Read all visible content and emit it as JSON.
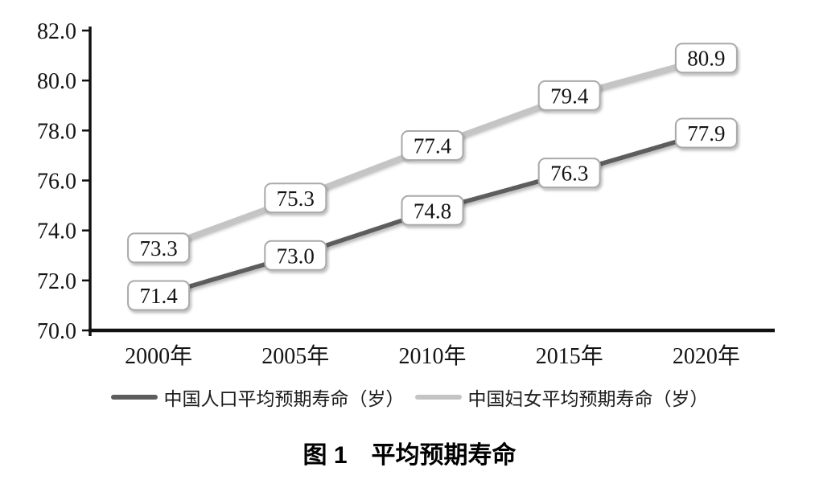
{
  "figure": {
    "caption": "图 1　平均预期寿命"
  },
  "chart_data": {
    "type": "line",
    "title": "图 1　平均预期寿命",
    "categories": [
      "2000年",
      "2005年",
      "2010年",
      "2015年",
      "2020年"
    ],
    "series": [
      {
        "name": "中国人口平均预期寿命（岁）",
        "values": [
          71.4,
          73.0,
          74.8,
          76.3,
          77.9
        ],
        "color": "#5d5d5d"
      },
      {
        "name": "中国妇女平均预期寿命（岁）",
        "values": [
          73.3,
          75.3,
          77.4,
          79.4,
          80.9
        ],
        "color": "#c4c4c4"
      }
    ],
    "ylim": [
      70,
      82
    ],
    "yticks": [
      70,
      72,
      74,
      76,
      78,
      80,
      82
    ],
    "ytick_decimals": 1,
    "data_label_decimals": 1,
    "grid": false,
    "data_labels": true,
    "legend_position": "bottom",
    "axis_color": "#111111",
    "label_box_border": "#a9a9a9"
  }
}
